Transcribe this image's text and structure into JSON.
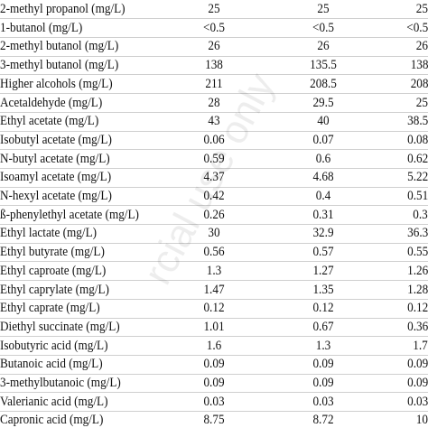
{
  "table": {
    "rows": [
      [
        "2-methyl propanol (mg/L)",
        "25",
        "25",
        "25"
      ],
      [
        "1-butanol (mg/L)",
        "<0.5",
        "<0.5",
        "<0.5"
      ],
      [
        "2-methyl butanol (mg/L)",
        "26",
        "26",
        "26"
      ],
      [
        "3-methyl butanol (mg/L)",
        "138",
        "135.5",
        "138"
      ],
      [
        "Higher alcohols (mg/L)",
        "211",
        "208.5",
        "208"
      ],
      [
        "Acetaldehyde (mg/L)",
        "28",
        "29.5",
        "25"
      ],
      [
        "Ethyl acetate (mg/L)",
        "43",
        "40",
        "38.5"
      ],
      [
        "Isobutyl acetate (mg/L)",
        "0.06",
        "0.07",
        "0.08"
      ],
      [
        "N-butyl acetate (mg/L)",
        "0.59",
        "0.6",
        "0.62"
      ],
      [
        "Isoamyl acetate (mg/L)",
        "4.37",
        "4.68",
        "5.22"
      ],
      [
        "N-hexyl acetate (mg/L)",
        "0.42",
        "0.4",
        "0.51"
      ],
      [
        "ß-phenylethyl acetate (mg/L)",
        "0.26",
        "0.31",
        "0.3"
      ],
      [
        "Ethyl lactate (mg/L)",
        "30",
        "32.9",
        "36.3"
      ],
      [
        "Ethyl butyrate (mg/L)",
        "0.56",
        "0.57",
        "0.55"
      ],
      [
        "Ethyl caproate (mg/L)",
        "1.3",
        "1.27",
        "1.26"
      ],
      [
        "Ethyl caprylate (mg/L)",
        "1.47",
        "1.35",
        "1.28"
      ],
      [
        "Ethyl caprate (mg/L)",
        "0.12",
        "0.12",
        "0.12"
      ],
      [
        "Diethyl succinate (mg/L)",
        "1.01",
        "0.67",
        "0.36"
      ],
      [
        "Isobutyric acid (mg/L)",
        "1.6",
        "1.3",
        "1.7"
      ],
      [
        "Butanoic acid (mg/L)",
        "0.09",
        "0.09",
        "0.09"
      ],
      [
        "3-methylbutanoic (mg/L)",
        "0.09",
        "0.09",
        "0.09"
      ],
      [
        "Valerianic acid (mg/L)",
        "0.03",
        "0.03",
        "0.03"
      ],
      [
        "Capronic acid (mg/L)",
        "8.75",
        "8.72",
        "10"
      ]
    ]
  },
  "watermark": "rcial use only"
}
